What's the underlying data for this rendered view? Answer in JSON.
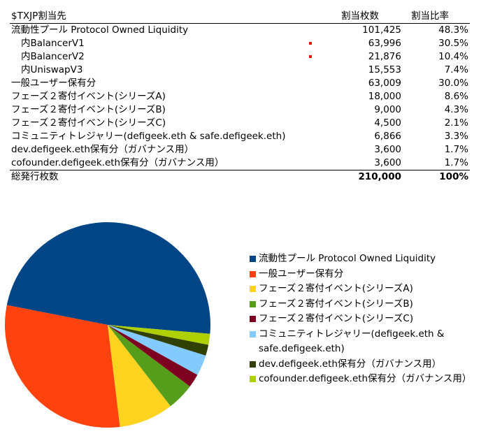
{
  "table": {
    "headers": {
      "label": "$TXJP割当先",
      "count": "割当枚数",
      "ratio": "割当比率"
    },
    "rows": [
      {
        "label": "流動性プール Protocol Owned Liquidity",
        "count": "101,425",
        "ratio": "48.3%",
        "indent": false,
        "marker": false
      },
      {
        "label": "内BalancerV1",
        "count": "63,996",
        "ratio": "30.5%",
        "indent": true,
        "marker": true
      },
      {
        "label": "内BalancerV2",
        "count": "21,876",
        "ratio": "10.4%",
        "indent": true,
        "marker": true
      },
      {
        "label": "内UniswapV3",
        "count": "15,553",
        "ratio": "7.4%",
        "indent": true,
        "marker": false
      },
      {
        "label": "一般ユーザー保有分",
        "count": "63,009",
        "ratio": "30.0%",
        "indent": false,
        "marker": false
      },
      {
        "label": "フェーズ２寄付イベント(シリーズA)",
        "count": "18,000",
        "ratio": "8.6%",
        "indent": false,
        "marker": false
      },
      {
        "label": "フェーズ２寄付イベント(シリーズB)",
        "count": "9,000",
        "ratio": "4.3%",
        "indent": false,
        "marker": false
      },
      {
        "label": "フェーズ２寄付イベント(シリーズC)",
        "count": "4,500",
        "ratio": "2.1%",
        "indent": false,
        "marker": false
      },
      {
        "label": "コミュニティトレジャリー(defigeek.eth & safe.defigeek.eth)",
        "count": "6,866",
        "ratio": "3.3%",
        "indent": false,
        "marker": false
      },
      {
        "label": "dev.defigeek.eth保有分（ガバナンス用）",
        "count": "3,600",
        "ratio": "1.7%",
        "indent": false,
        "marker": false
      },
      {
        "label": "cofounder.defigeek.eth保有分（ガバナンス用）",
        "count": "3,600",
        "ratio": "1.7%",
        "indent": false,
        "marker": false
      }
    ],
    "total": {
      "label": "総発行枚数",
      "count": "210,000",
      "ratio": "100%"
    }
  },
  "colors": {
    "marker": "#e8170b"
  },
  "chart_data": {
    "type": "pie",
    "start_angle_deg": -5,
    "direction": "counterclockwise",
    "legend_position": "right",
    "slices": [
      {
        "label": "流動性プール Protocol Owned Liquidity",
        "value": 101425,
        "color": "#004586"
      },
      {
        "label": "一般ユーザー保有分",
        "value": 63009,
        "color": "#ff420e"
      },
      {
        "label": "フェーズ２寄付イベント(シリーズA)",
        "value": 18000,
        "color": "#ffd320"
      },
      {
        "label": "フェーズ２寄付イベント(シリーズB)",
        "value": 9000,
        "color": "#579d1c"
      },
      {
        "label": "フェーズ２寄付イベント(シリーズC)",
        "value": 4500,
        "color": "#7e0021"
      },
      {
        "label": "コミュニティトレジャリー(defigeek.eth & safe.defigeek.eth)",
        "value": 6866,
        "color": "#83caff"
      },
      {
        "label": "dev.defigeek.eth保有分（ガバナンス用）",
        "value": 3600,
        "color": "#314004"
      },
      {
        "label": "cofounder.defigeek.eth保有分（ガバナンス用）",
        "value": 3600,
        "color": "#aecf00"
      }
    ],
    "legend": [
      {
        "text": "流動性プール Protocol Owned Liquidity",
        "color": "#004586"
      },
      {
        "text": "一般ユーザー保有分",
        "color": "#ff420e"
      },
      {
        "text": "フェーズ２寄付イベント(シリーズA)",
        "color": "#ffd320"
      },
      {
        "text": "フェーズ２寄付イベント(シリーズB)",
        "color": "#579d1c"
      },
      {
        "text": "フェーズ２寄付イベント(シリーズC)",
        "color": "#7e0021"
      },
      {
        "text": "コミュニティトレジャリー(defigeek.eth & safe.defigeek.eth)",
        "color": "#83caff"
      },
      {
        "text": "dev.defigeek.eth保有分（ガバナンス用）",
        "color": "#314004"
      },
      {
        "text": "cofounder.defigeek.eth保有分（ガバナンス用）",
        "color": "#aecf00"
      }
    ]
  }
}
